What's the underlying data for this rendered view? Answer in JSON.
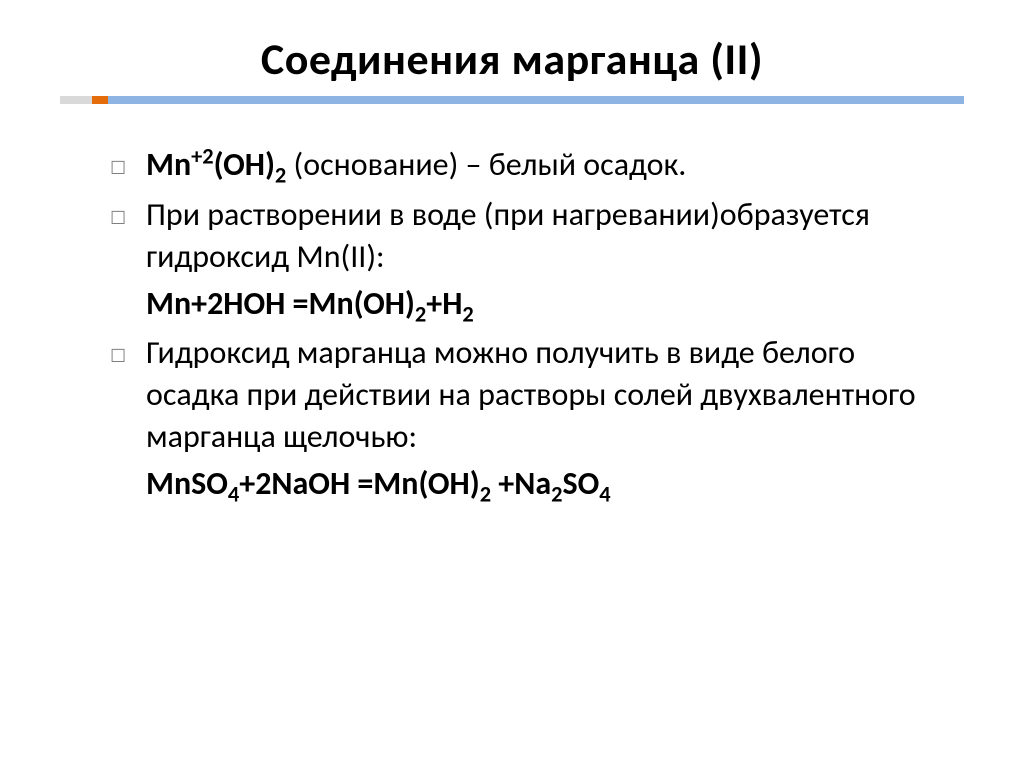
{
  "slide": {
    "title_html": "Соединения марганца (II)",
    "underline_colors": {
      "seg1": "#d9d9d9",
      "seg2": "#e46c0a",
      "seg3": "#8eb4e3"
    },
    "bullets": [
      {
        "lines": [
          "<b>Mn<sup>+2</sup>(OH)<sub>2</sub></b>  (основание) – белый осадок."
        ]
      },
      {
        "lines": [
          "При растворении в воде (при нагревании)образуется гидроксид Mn(II):"
        ],
        "formula": "Mn+2HOH =Mn(OH)<sub>2</sub>+H<sub>2</sub>"
      },
      {
        "lines": [
          "Гидроксид марганца можно получить в виде белого осадка при действии на растворы солей двухвалентного марганца щелочью:"
        ],
        "formula": "MnSO<sub>4</sub>+2NaOH =Mn(OH)<sub>2</sub> +Na<sub>2</sub>SO<sub>4</sub>"
      }
    ],
    "typography": {
      "title_fontsize_pt": 33,
      "body_fontsize_pt": 24,
      "title_weight": 700,
      "body_weight": 400,
      "formula_weight": 700,
      "font_family": "Calibri",
      "title_color": "#000000",
      "body_color": "#000000",
      "bullet_color": "#808080"
    },
    "background_color": "#ffffff",
    "bullet_glyph": "☐"
  }
}
